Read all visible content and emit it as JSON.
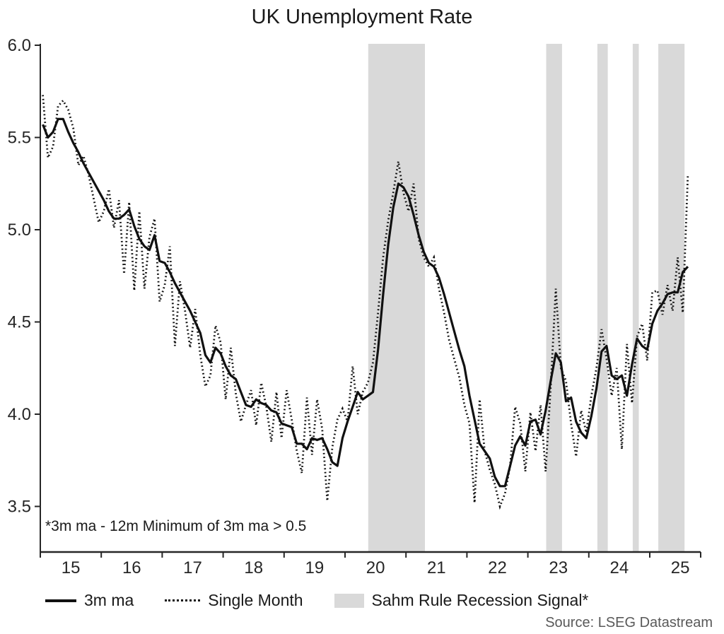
{
  "title": "UK Unemployment Rate",
  "annotation": "*3m ma - 12m Minimum of 3m ma > 0.5",
  "source": "Source: LSEG Datastream",
  "legend": [
    {
      "label": "3m ma",
      "swatch": "solid-line"
    },
    {
      "label": "Single Month",
      "swatch": "dotted-line"
    },
    {
      "label": "Sahm Rule Recession Signal*",
      "swatch": "gray-band"
    }
  ],
  "colors": {
    "line": "#111111",
    "recession_band": "#d9d9d9",
    "axis": "#262626",
    "title_text": "#1a1a1a",
    "source_text": "#595959"
  },
  "chart_data": {
    "type": "line",
    "title": "UK Unemployment Rate",
    "xlabel": "",
    "ylabel": "",
    "x_unit": "monthly, decimal years",
    "x_start": "2015-01",
    "x_end": "2025-08",
    "xlim": [
      2015.0,
      2025.83
    ],
    "ylim": [
      3.25,
      6.0
    ],
    "y_ticks": [
      3.5,
      4.0,
      4.5,
      5.0,
      5.5,
      6.0
    ],
    "x_tick_years": [
      2015,
      2016,
      2017,
      2018,
      2019,
      2020,
      2021,
      2022,
      2023,
      2024,
      2025
    ],
    "x_tick_labels": [
      "15",
      "16",
      "17",
      "18",
      "19",
      "20",
      "21",
      "22",
      "23",
      "24",
      "25"
    ],
    "grid": false,
    "legend_position": "bottom",
    "recession_bands": [
      {
        "start": 2020.38,
        "end": 2021.31
      },
      {
        "start": 2023.3,
        "end": 2023.56
      },
      {
        "start": 2024.14,
        "end": 2024.31
      },
      {
        "start": 2024.72,
        "end": 2024.82
      },
      {
        "start": 2025.14,
        "end": 2025.57
      }
    ],
    "series": [
      {
        "name": "3m ma",
        "style": "solid",
        "values": [
          5.57,
          5.5,
          5.53,
          5.6,
          5.6,
          5.53,
          5.47,
          5.42,
          5.36,
          5.31,
          5.26,
          5.21,
          5.16,
          5.1,
          5.06,
          5.06,
          5.08,
          5.11,
          5.02,
          4.95,
          4.91,
          4.89,
          4.97,
          4.83,
          4.82,
          4.77,
          4.71,
          4.66,
          4.61,
          4.56,
          4.5,
          4.44,
          4.32,
          4.28,
          4.36,
          4.33,
          4.26,
          4.21,
          4.19,
          4.12,
          4.05,
          4.04,
          4.08,
          4.06,
          4.05,
          4.02,
          4.01,
          3.95,
          3.94,
          3.93,
          3.84,
          3.84,
          3.81,
          3.87,
          3.86,
          3.87,
          3.81,
          3.74,
          3.72,
          3.87,
          3.96,
          4.04,
          4.12,
          4.08,
          4.1,
          4.12,
          4.35,
          4.65,
          4.92,
          5.12,
          5.25,
          5.23,
          5.18,
          5.08,
          4.97,
          4.88,
          4.82,
          4.8,
          4.74,
          4.65,
          4.55,
          4.45,
          4.35,
          4.26,
          4.1,
          3.97,
          3.84,
          3.8,
          3.76,
          3.66,
          3.61,
          3.61,
          3.72,
          3.83,
          3.88,
          3.83,
          3.96,
          3.97,
          3.89,
          4.02,
          4.18,
          4.33,
          4.28,
          4.07,
          4.09,
          3.96,
          3.9,
          3.87,
          3.99,
          4.14,
          4.34,
          4.37,
          4.21,
          4.19,
          4.21,
          4.1,
          4.27,
          4.41,
          4.37,
          4.35,
          4.49,
          4.56,
          4.6,
          4.65,
          4.66,
          4.66,
          4.77,
          4.8
        ]
      },
      {
        "name": "Single Month",
        "style": "dotted",
        "values": [
          5.73,
          5.39,
          5.45,
          5.67,
          5.7,
          5.65,
          5.55,
          5.35,
          5.4,
          5.3,
          5.17,
          5.04,
          5.1,
          5.22,
          5.01,
          5.16,
          4.76,
          5.15,
          4.67,
          5.1,
          4.68,
          4.96,
          5.06,
          4.61,
          4.7,
          4.91,
          4.37,
          4.72,
          4.56,
          4.36,
          4.57,
          4.32,
          4.15,
          4.21,
          4.48,
          4.39,
          4.08,
          4.36,
          4.11,
          3.96,
          4.05,
          4.13,
          3.94,
          4.17,
          4.04,
          3.85,
          4.12,
          3.87,
          4.13,
          3.97,
          3.8,
          3.68,
          4.09,
          3.78,
          4.08,
          3.92,
          3.53,
          3.82,
          3.97,
          4.03,
          3.96,
          4.26,
          4.0,
          4.12,
          4.17,
          4.28,
          4.55,
          4.85,
          5.05,
          5.2,
          5.37,
          5.2,
          5.1,
          5.25,
          4.95,
          4.85,
          4.8,
          4.85,
          4.68,
          4.55,
          4.4,
          4.3,
          4.2,
          4.05,
          3.95,
          3.52,
          4.08,
          3.8,
          3.7,
          3.62,
          3.5,
          3.57,
          3.72,
          4.04,
          3.95,
          3.69,
          4.01,
          3.8,
          4.05,
          3.69,
          4.15,
          4.68,
          4.25,
          4.18,
          3.95,
          3.77,
          4.02,
          3.9,
          4.1,
          4.25,
          4.46,
          4.3,
          4.1,
          4.25,
          3.81,
          4.38,
          4.06,
          4.42,
          4.49,
          4.29,
          4.66,
          4.67,
          4.54,
          4.7,
          4.56,
          4.85,
          4.55,
          5.3
        ]
      }
    ]
  }
}
